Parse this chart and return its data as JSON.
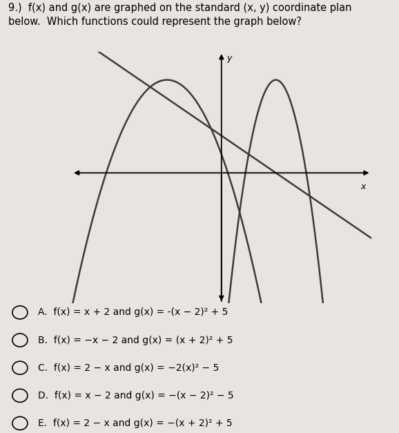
{
  "background_color": "#e8e4e0",
  "title_text": "9.)  f(x) and g(x) are graphed on the standard (x, y) coordinate plan\nbelow.  Which functions could represent the graph below?",
  "options": [
    "A.  f(x) = x + 2 and g(x) = -(x − 2)² + 5",
    "B.  f(x) = −x − 2 and g(x) = (x + 2)² + 5",
    "C.  f(x) = 2 − x and g(x) = −2(x)² − 5",
    "D.  f(x) = x − 2 and g(x) = −(x − 2)² − 5",
    "E.  f(x) = 2 − x and g(x) = −(x + 2)² + 5"
  ],
  "xlim": [
    -5.5,
    5.5
  ],
  "ylim": [
    -7,
    6.5
  ],
  "parabola1_vx": -2,
  "parabola1_vy": 5,
  "parabola1_a": -1,
  "parabola2_vx": 2,
  "parabola2_vy": 5,
  "parabola2_a": -4,
  "line_slope": -1,
  "line_intercept": 2,
  "curve_color": "#3a3a3a",
  "curve_lw": 1.8
}
